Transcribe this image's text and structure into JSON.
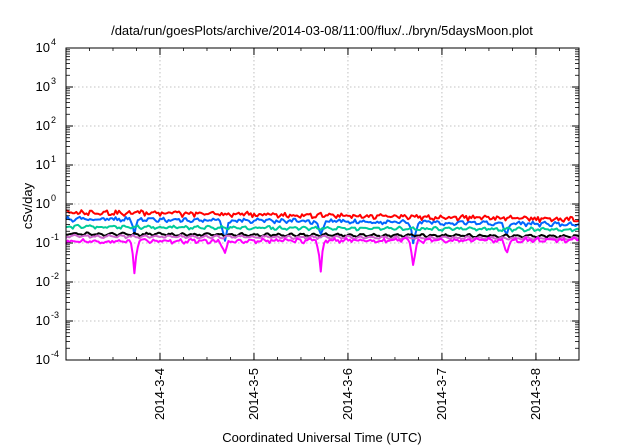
{
  "chart_data": {
    "type": "line",
    "title": "/data/run/goesPlots/archive/2014-03-08/11:00/flux/../bryn/5daysMoon.plot",
    "xlabel": "Coordinated Universal Time (UTC)",
    "ylabel": "cSv/day",
    "yscale": "log",
    "ylim": [
      0.0001,
      10000
    ],
    "yticks": [
      {
        "value": 0.0001,
        "base": "10",
        "exp": "-4"
      },
      {
        "value": 0.001,
        "base": "10",
        "exp": "-3"
      },
      {
        "value": 0.01,
        "base": "10",
        "exp": "-2"
      },
      {
        "value": 0.1,
        "base": "10",
        "exp": "-1"
      },
      {
        "value": 1,
        "base": "10",
        "exp": "0"
      },
      {
        "value": 10,
        "base": "10",
        "exp": "1"
      },
      {
        "value": 100,
        "base": "10",
        "exp": "2"
      },
      {
        "value": 1000,
        "base": "10",
        "exp": "3"
      },
      {
        "value": 10000,
        "base": "10",
        "exp": "4"
      }
    ],
    "xlim": [
      "2014-03-03T00:00",
      "2014-03-08T11:00"
    ],
    "xticks": [
      {
        "value": "2014-03-04T00:00",
        "label": "2014-3-4"
      },
      {
        "value": "2014-03-05T00:00",
        "label": "2014-3-5"
      },
      {
        "value": "2014-03-06T00:00",
        "label": "2014-3-6"
      },
      {
        "value": "2014-03-07T00:00",
        "label": "2014-3-7"
      },
      {
        "value": "2014-03-08T00:00",
        "label": "2014-3-8"
      }
    ],
    "grid": true,
    "series": [
      {
        "color": "#ff0000",
        "start": 0.62,
        "end": 0.4,
        "noise": 0.12,
        "dips": []
      },
      {
        "color": "#0066ff",
        "start": 0.42,
        "end": 0.3,
        "noise": 0.1,
        "dips": [
          0.45,
          0.2
        ]
      },
      {
        "color": "#00cc99",
        "start": 0.26,
        "end": 0.22,
        "noise": 0.07,
        "dips": []
      },
      {
        "color": "#000000",
        "start": 0.17,
        "end": 0.15,
        "noise": 0.05,
        "dips": []
      },
      {
        "color": "#cc66cc",
        "start": 0.15,
        "end": 0.13,
        "noise": 0.05,
        "dips": []
      },
      {
        "color": "#ff00ff",
        "start": 0.11,
        "end": 0.12,
        "noise": 0.1,
        "dips": [
          0.35,
          0.5
        ]
      }
    ],
    "dip_times": [
      "2014-03-03T17:30",
      "2014-03-04T16:30",
      "2014-03-05T17:00",
      "2014-03-06T16:45",
      "2014-03-07T16:30"
    ],
    "magenta_dip_values": [
      0.014,
      0.05,
      0.013,
      0.018,
      0.05
    ]
  }
}
